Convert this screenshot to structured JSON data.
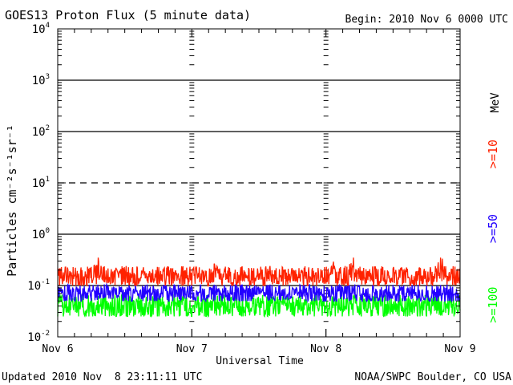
{
  "chart_data": {
    "type": "line",
    "title": "GOES13 Proton Flux (5 minute data)",
    "begin_label": "Begin: 2010 Nov 6 0000 UTC",
    "xlabel": "Universal Time",
    "ylabel": "Particles cm⁻²s⁻¹sr⁻¹",
    "yscale": "log",
    "ylim": [
      0.01,
      10000
    ],
    "x_range_days": [
      0,
      3
    ],
    "categories": [
      "Nov 6",
      "Nov 7",
      "Nov 8",
      "Nov 9"
    ],
    "y_ticks": [
      {
        "base": "10",
        "exp": "-2",
        "value": 0.01
      },
      {
        "base": "10",
        "exp": "-1",
        "value": 0.1
      },
      {
        "base": "10",
        "exp": "0",
        "value": 1
      },
      {
        "base": "10",
        "exp": "1",
        "value": 10
      },
      {
        "base": "10",
        "exp": "2",
        "value": 100
      },
      {
        "base": "10",
        "exp": "3",
        "value": 1000
      },
      {
        "base": "10",
        "exp": "4",
        "value": 10000
      }
    ],
    "threshold_lines": [
      {
        "value": 10,
        "style": "dashed"
      },
      {
        "value": 1,
        "style": "solid"
      },
      {
        "value": 100,
        "style": "solid"
      },
      {
        "value": 1000,
        "style": "solid"
      },
      {
        "value": 0.1,
        "style": "solid"
      }
    ],
    "unit_label": "MeV",
    "series": [
      {
        "name": ">=10",
        "color": "#ff2200",
        "typical": 0.15,
        "min": 0.1,
        "max": 0.35,
        "peaks": [
          {
            "day": 0.3,
            "value": 0.25
          },
          {
            "day": 1.15,
            "value": 0.22
          },
          {
            "day": 2.05,
            "value": 0.3
          },
          {
            "day": 2.2,
            "value": 0.35
          },
          {
            "day": 2.85,
            "value": 0.3
          }
        ]
      },
      {
        "name": ">=50",
        "color": "#2200ff",
        "typical": 0.07,
        "min": 0.05,
        "max": 0.15
      },
      {
        "name": ">=100",
        "color": "#00ff00",
        "typical": 0.04,
        "min": 0.025,
        "max": 0.1
      }
    ],
    "footer_left": "Updated 2010 Nov  8 23:11:11 UTC",
    "footer_right": "NOAA/SWPC Boulder, CO USA"
  }
}
